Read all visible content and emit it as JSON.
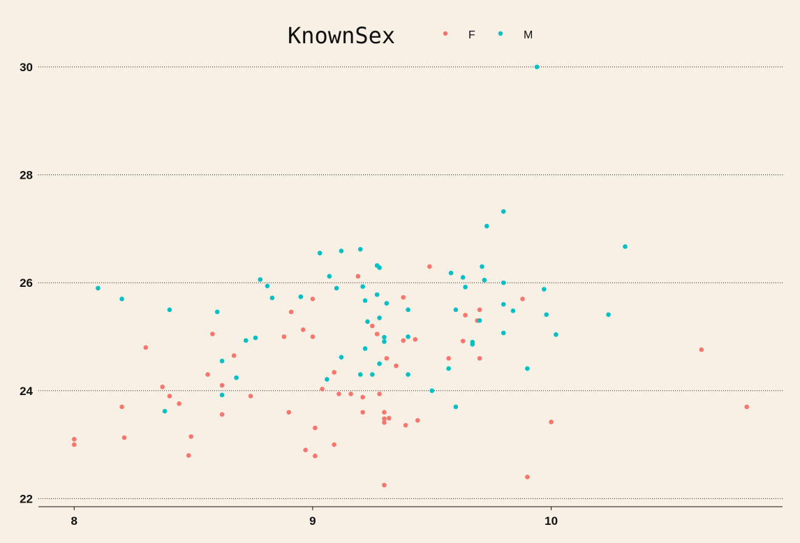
{
  "chart_data": {
    "type": "scatter",
    "title": "",
    "xlabel": "",
    "ylabel": "",
    "xlim": [
      7.85,
      10.97
    ],
    "ylim": [
      21.85,
      30.05
    ],
    "x_ticks": [
      8,
      9,
      10
    ],
    "y_ticks": [
      22,
      24,
      26,
      28,
      30
    ],
    "grid": "horizontal dotted",
    "legend": {
      "title": "KnownSex",
      "position": "top",
      "entries": [
        {
          "label": "F",
          "color": "#F8766D"
        },
        {
          "label": "M",
          "color": "#00BFC4"
        }
      ]
    },
    "series": [
      {
        "name": "F",
        "color": "#F8766D",
        "points": [
          [
            8.0,
            23.1
          ],
          [
            8.0,
            23.0
          ],
          [
            8.2,
            23.7
          ],
          [
            8.21,
            23.13
          ],
          [
            8.3,
            24.8
          ],
          [
            8.37,
            24.07
          ],
          [
            8.4,
            23.9
          ],
          [
            8.44,
            23.76
          ],
          [
            8.48,
            22.8
          ],
          [
            8.49,
            23.15
          ],
          [
            8.56,
            24.3
          ],
          [
            8.58,
            25.05
          ],
          [
            8.62,
            24.1
          ],
          [
            8.62,
            23.56
          ],
          [
            8.67,
            24.65
          ],
          [
            8.74,
            23.9
          ],
          [
            8.88,
            25.0
          ],
          [
            8.9,
            23.6
          ],
          [
            8.91,
            25.46
          ],
          [
            8.96,
            25.13
          ],
          [
            8.97,
            22.9
          ],
          [
            9.0,
            25.7
          ],
          [
            9.0,
            25.0
          ],
          [
            9.01,
            23.31
          ],
          [
            9.01,
            22.79
          ],
          [
            9.04,
            24.03
          ],
          [
            9.09,
            24.34
          ],
          [
            9.09,
            23.0
          ],
          [
            9.11,
            23.94
          ],
          [
            9.16,
            23.94
          ],
          [
            9.19,
            26.12
          ],
          [
            9.21,
            23.88
          ],
          [
            9.21,
            23.6
          ],
          [
            9.25,
            25.2
          ],
          [
            9.27,
            25.05
          ],
          [
            9.28,
            23.94
          ],
          [
            9.3,
            23.6
          ],
          [
            9.3,
            23.48
          ],
          [
            9.3,
            23.41
          ],
          [
            9.3,
            22.25
          ],
          [
            9.31,
            24.6
          ],
          [
            9.32,
            23.49
          ],
          [
            9.35,
            24.46
          ],
          [
            9.38,
            25.73
          ],
          [
            9.38,
            24.93
          ],
          [
            9.39,
            23.36
          ],
          [
            9.43,
            24.95
          ],
          [
            9.44,
            23.45
          ],
          [
            9.49,
            26.3
          ],
          [
            9.57,
            24.6
          ],
          [
            9.63,
            24.92
          ],
          [
            9.64,
            25.4
          ],
          [
            9.69,
            25.3
          ],
          [
            9.7,
            25.5
          ],
          [
            9.7,
            24.6
          ],
          [
            9.88,
            25.7
          ],
          [
            9.9,
            22.4
          ],
          [
            10.0,
            23.42
          ],
          [
            10.63,
            24.76
          ],
          [
            10.82,
            23.7
          ]
        ]
      },
      {
        "name": "M",
        "color": "#00BFC4",
        "points": [
          [
            8.1,
            25.9
          ],
          [
            8.2,
            25.7
          ],
          [
            8.38,
            23.62
          ],
          [
            8.4,
            25.5
          ],
          [
            8.6,
            25.46
          ],
          [
            8.62,
            24.55
          ],
          [
            8.62,
            23.92
          ],
          [
            8.68,
            24.24
          ],
          [
            8.72,
            24.93
          ],
          [
            8.76,
            24.98
          ],
          [
            8.78,
            26.06
          ],
          [
            8.81,
            25.94
          ],
          [
            8.83,
            25.72
          ],
          [
            8.95,
            25.74
          ],
          [
            9.03,
            26.55
          ],
          [
            9.06,
            24.21
          ],
          [
            9.07,
            26.12
          ],
          [
            9.1,
            25.9
          ],
          [
            9.12,
            26.59
          ],
          [
            9.12,
            24.62
          ],
          [
            9.2,
            26.62
          ],
          [
            9.2,
            24.3
          ],
          [
            9.21,
            25.93
          ],
          [
            9.22,
            25.67
          ],
          [
            9.22,
            24.78
          ],
          [
            9.23,
            25.28
          ],
          [
            9.25,
            24.3
          ],
          [
            9.27,
            26.32
          ],
          [
            9.27,
            25.78
          ],
          [
            9.28,
            26.28
          ],
          [
            9.28,
            25.35
          ],
          [
            9.28,
            24.5
          ],
          [
            9.3,
            24.99
          ],
          [
            9.3,
            24.91
          ],
          [
            9.31,
            25.62
          ],
          [
            9.4,
            25.5
          ],
          [
            9.4,
            25.0
          ],
          [
            9.4,
            24.3
          ],
          [
            9.5,
            24.0
          ],
          [
            9.57,
            24.41
          ],
          [
            9.58,
            26.18
          ],
          [
            9.6,
            25.5
          ],
          [
            9.6,
            23.7
          ],
          [
            9.63,
            26.1
          ],
          [
            9.64,
            25.92
          ],
          [
            9.67,
            24.9
          ],
          [
            9.67,
            24.86
          ],
          [
            9.7,
            25.3
          ],
          [
            9.71,
            26.3
          ],
          [
            9.72,
            26.05
          ],
          [
            9.73,
            27.05
          ],
          [
            9.8,
            27.32
          ],
          [
            9.8,
            26.0
          ],
          [
            9.8,
            25.6
          ],
          [
            9.8,
            25.07
          ],
          [
            9.84,
            25.48
          ],
          [
            9.9,
            24.41
          ],
          [
            9.94,
            30.0
          ],
          [
            9.97,
            25.88
          ],
          [
            9.98,
            25.41
          ],
          [
            10.02,
            25.04
          ],
          [
            10.24,
            25.41
          ],
          [
            10.31,
            26.67
          ]
        ]
      }
    ]
  }
}
